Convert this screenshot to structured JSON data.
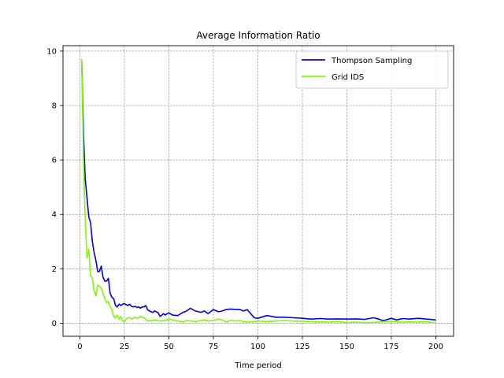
{
  "chart_data": {
    "type": "line",
    "title": "Average Information Ratio",
    "xlabel": "Time period",
    "ylabel": "",
    "xlim": [
      -9.5,
      210
    ],
    "ylim": [
      -0.48,
      10.2
    ],
    "xticks": [
      0,
      25,
      50,
      75,
      100,
      125,
      150,
      175,
      200
    ],
    "yticks": [
      0,
      2,
      4,
      6,
      8,
      10
    ],
    "grid": true,
    "legend_position": "top-right",
    "series": [
      {
        "name": "Thompson Sampling",
        "color": "#0000ee",
        "x": [
          1,
          2,
          3,
          4,
          5,
          6,
          7,
          8,
          9,
          10,
          11,
          12,
          13,
          14,
          15,
          16,
          17,
          18,
          19,
          20,
          21,
          22,
          23,
          24,
          25,
          26,
          27,
          28,
          29,
          30,
          31,
          32,
          33,
          34,
          35,
          36,
          37,
          38,
          39,
          40,
          41,
          42,
          43,
          44,
          45,
          46,
          47,
          48,
          49,
          50,
          52,
          55,
          58,
          60,
          62,
          65,
          68,
          70,
          72,
          75,
          78,
          80,
          82,
          85,
          88,
          90,
          92,
          94,
          96,
          98,
          100,
          102,
          105,
          108,
          110,
          115,
          120,
          125,
          130,
          135,
          140,
          145,
          150,
          155,
          160,
          165,
          168,
          170,
          172,
          175,
          178,
          180,
          182,
          185,
          190,
          195,
          200
        ],
        "y": [
          9.7,
          7.0,
          5.3,
          4.6,
          3.9,
          3.7,
          3.0,
          2.6,
          2.3,
          1.9,
          1.9,
          2.1,
          1.7,
          1.55,
          1.55,
          1.65,
          1.1,
          0.95,
          0.9,
          0.65,
          0.6,
          0.7,
          0.65,
          0.7,
          0.72,
          0.68,
          0.65,
          0.7,
          0.62,
          0.6,
          0.62,
          0.58,
          0.6,
          0.55,
          0.6,
          0.6,
          0.65,
          0.5,
          0.45,
          0.42,
          0.4,
          0.45,
          0.42,
          0.38,
          0.25,
          0.3,
          0.35,
          0.3,
          0.35,
          0.38,
          0.3,
          0.28,
          0.4,
          0.45,
          0.55,
          0.45,
          0.4,
          0.45,
          0.35,
          0.5,
          0.42,
          0.45,
          0.5,
          0.52,
          0.5,
          0.5,
          0.45,
          0.5,
          0.35,
          0.2,
          0.18,
          0.22,
          0.28,
          0.25,
          0.22,
          0.22,
          0.2,
          0.18,
          0.15,
          0.17,
          0.15,
          0.16,
          0.15,
          0.16,
          0.14,
          0.2,
          0.15,
          0.1,
          0.12,
          0.18,
          0.12,
          0.15,
          0.17,
          0.15,
          0.18,
          0.15,
          0.12
        ]
      },
      {
        "name": "Grid IDS",
        "color": "#7cfc00",
        "x": [
          1,
          2,
          3,
          4,
          5,
          6,
          7,
          8,
          9,
          10,
          11,
          12,
          13,
          14,
          15,
          16,
          17,
          18,
          19,
          20,
          21,
          22,
          23,
          24,
          25,
          26,
          27,
          28,
          29,
          30,
          31,
          32,
          33,
          34,
          35,
          36,
          37,
          38,
          39,
          40,
          42,
          45,
          48,
          50,
          52,
          55,
          58,
          60,
          62,
          65,
          68,
          70,
          72,
          75,
          78,
          80,
          82,
          85,
          88,
          90,
          92,
          95,
          98,
          100,
          105,
          110,
          115,
          120,
          125,
          130,
          135,
          140,
          145,
          150,
          155,
          160,
          165,
          170,
          175,
          180,
          185,
          190,
          195,
          198,
          200
        ],
        "y": [
          9.7,
          6.0,
          3.8,
          2.4,
          2.7,
          1.75,
          1.65,
          1.2,
          1.0,
          1.4,
          1.35,
          1.3,
          1.1,
          0.9,
          0.75,
          0.8,
          0.6,
          0.5,
          0.25,
          0.2,
          0.3,
          0.15,
          0.25,
          0.08,
          0.06,
          0.15,
          0.2,
          0.2,
          0.15,
          0.2,
          0.22,
          0.18,
          0.2,
          0.25,
          0.22,
          0.2,
          0.15,
          0.08,
          0.1,
          0.08,
          0.12,
          0.08,
          0.1,
          0.15,
          0.12,
          0.08,
          0.05,
          0.1,
          0.08,
          0.06,
          0.1,
          0.12,
          0.08,
          0.1,
          0.15,
          0.12,
          0.05,
          0.1,
          0.08,
          0.1,
          0.05,
          0.04,
          0.05,
          0.08,
          0.06,
          0.08,
          0.1,
          0.08,
          0.07,
          0.06,
          0.05,
          0.04,
          0.06,
          0.02,
          0.04,
          0.02,
          0.03,
          0.05,
          0.06,
          0.04,
          0.05,
          0.04,
          0.06,
          0.02,
          0.03
        ]
      }
    ]
  }
}
